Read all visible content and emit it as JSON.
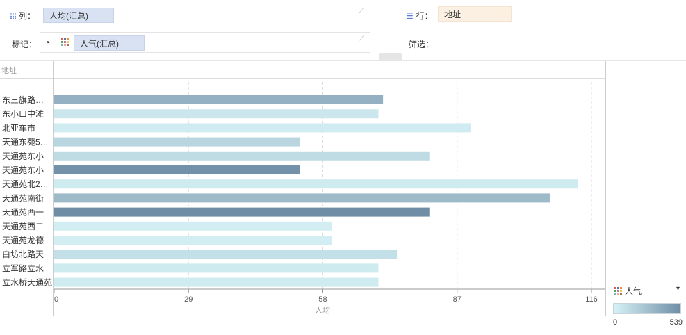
{
  "shelves": {
    "columns_label": "列：",
    "columns_pill": "人均(汇总)",
    "rows_label": "行：",
    "rows_pill": "地址",
    "marks_label": "标记：",
    "marks_pill": "人气(汇总)",
    "filter_label": "筛选："
  },
  "colors": {
    "bar_light": "#d6f2f6",
    "bar_dark": "#6f8ea6",
    "pill_blue": "#d9e2f3",
    "pill_beige": "#fbf0e2"
  },
  "chart_data": {
    "type": "bar",
    "orientation": "horizontal",
    "row_header": "地址",
    "xlabel": "人均",
    "xlim": [
      0,
      116
    ],
    "xticks": [
      "0",
      "29",
      "58",
      "87",
      "116"
    ],
    "grid": true,
    "categories": [
      "东三旗路…",
      "东小口中滩",
      "北亚车市",
      "天通东苑5…",
      "天通苑东小",
      "天通苑东小",
      "天通苑北2…",
      "天通苑南街",
      "天通苑西一",
      "天通苑西二",
      "天通苑龙德",
      "白坊北路天",
      "立军路立水",
      "立水桥天通苑"
    ],
    "values": [
      71,
      70,
      90,
      53,
      81,
      53,
      113,
      107,
      81,
      60,
      60,
      74,
      70,
      70
    ],
    "popularity": [
      350,
      60,
      30,
      150,
      120,
      520,
      40,
      300,
      539,
      20,
      20,
      100,
      40,
      40
    ]
  },
  "legend": {
    "title": "人气",
    "min_label": "0",
    "max_label": "539",
    "min": 0,
    "max": 539
  }
}
